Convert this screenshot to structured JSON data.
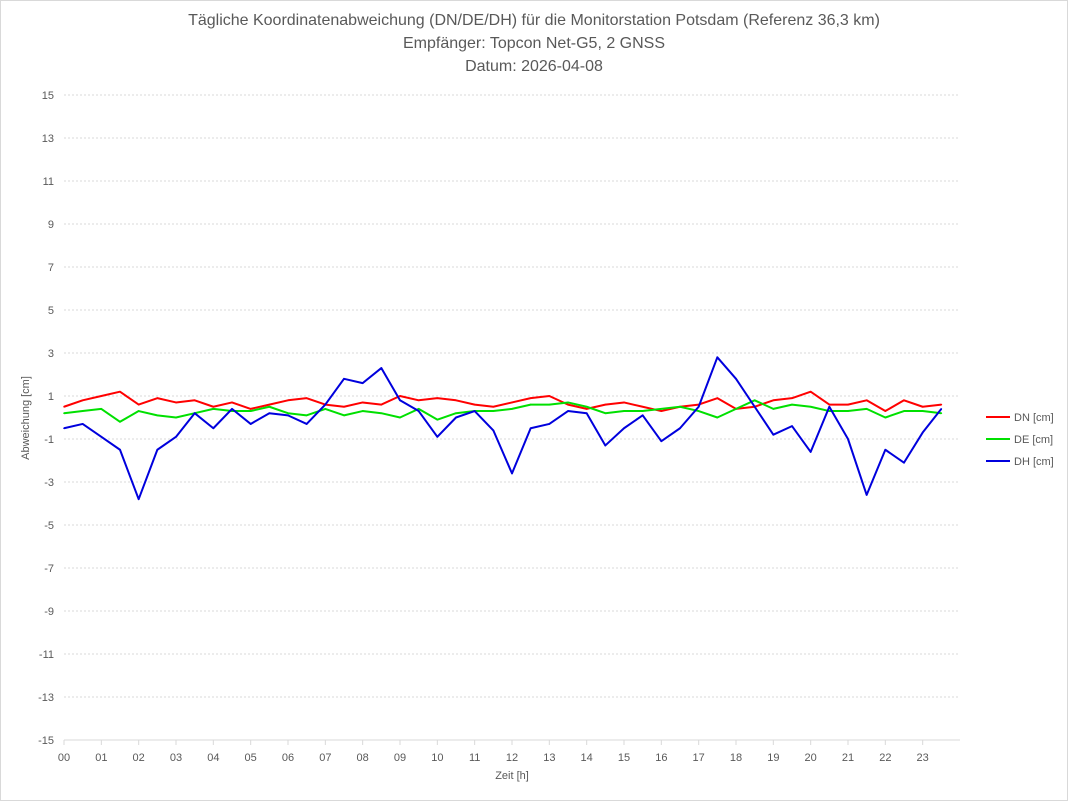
{
  "chart_data": {
    "type": "line",
    "title": "Tägliche Koordinatenabweichung (DN/DE/DH) für die Monitorstation Potsdam (Referenz 36,3 km)",
    "subtitle": "Empfänger: Topcon Net-G5, 2 GNSS",
    "date_line": "Datum: 2026-04-08",
    "xlabel": "Zeit [h]",
    "ylabel": "Abweichung [cm]",
    "xlim": [
      0,
      24
    ],
    "ylim": [
      -15,
      15
    ],
    "x_ticks": [
      "00",
      "01",
      "02",
      "03",
      "04",
      "05",
      "06",
      "07",
      "08",
      "09",
      "10",
      "11",
      "12",
      "13",
      "14",
      "15",
      "16",
      "17",
      "18",
      "19",
      "20",
      "21",
      "22",
      "23"
    ],
    "y_ticks": [
      "15",
      "13",
      "11",
      "9",
      "7",
      "5",
      "3",
      "1",
      "-1",
      "-3",
      "-5",
      "-7",
      "-9",
      "-11",
      "-13",
      "-15"
    ],
    "grid": "horizontal dotted",
    "legend_position": "right",
    "x_step_hours": 0.5,
    "series": [
      {
        "name": "DN [cm]",
        "color": "#ff0000",
        "values": [
          0.5,
          0.8,
          1.0,
          1.2,
          0.6,
          0.9,
          0.7,
          0.8,
          0.5,
          0.7,
          0.4,
          0.6,
          0.8,
          0.9,
          0.6,
          0.5,
          0.7,
          0.6,
          1.0,
          0.8,
          0.9,
          0.8,
          0.6,
          0.5,
          0.7,
          0.9,
          1.0,
          0.6,
          0.4,
          0.6,
          0.7,
          0.5,
          0.3,
          0.5,
          0.6,
          0.9,
          0.4,
          0.5,
          0.8,
          0.9,
          1.2,
          0.6,
          0.6,
          0.8,
          0.3,
          0.8,
          0.5,
          0.6
        ]
      },
      {
        "name": "DE [cm]",
        "color": "#00e000",
        "values": [
          0.2,
          0.3,
          0.4,
          -0.2,
          0.3,
          0.1,
          0.0,
          0.2,
          0.4,
          0.3,
          0.3,
          0.5,
          0.2,
          0.1,
          0.4,
          0.1,
          0.3,
          0.2,
          0.0,
          0.4,
          -0.1,
          0.2,
          0.3,
          0.3,
          0.4,
          0.6,
          0.6,
          0.7,
          0.5,
          0.2,
          0.3,
          0.3,
          0.4,
          0.5,
          0.3,
          0.0,
          0.4,
          0.8,
          0.4,
          0.6,
          0.5,
          0.3,
          0.3,
          0.4,
          0.0,
          0.3,
          0.3,
          0.2
        ]
      },
      {
        "name": "DH [cm]",
        "color": "#0000dd",
        "values": [
          -0.5,
          -0.3,
          -0.9,
          -1.5,
          -3.8,
          -1.5,
          -0.9,
          0.2,
          -0.5,
          0.4,
          -0.3,
          0.2,
          0.1,
          -0.3,
          0.6,
          1.8,
          1.6,
          2.3,
          0.8,
          0.3,
          -0.9,
          0.0,
          0.3,
          -0.6,
          -2.6,
          -0.5,
          -0.3,
          0.3,
          0.2,
          -1.3,
          -0.5,
          0.1,
          -1.1,
          -0.5,
          0.5,
          2.8,
          1.8,
          0.5,
          -0.8,
          -0.4,
          -1.6,
          0.5,
          -1.0,
          -3.6,
          -1.5,
          -2.1,
          -0.7,
          0.4
        ]
      }
    ]
  },
  "legend": [
    {
      "label": "DN [cm]",
      "color": "#ff0000"
    },
    {
      "label": "DE [cm]",
      "color": "#00e000"
    },
    {
      "label": "DH [cm]",
      "color": "#0000dd"
    }
  ]
}
